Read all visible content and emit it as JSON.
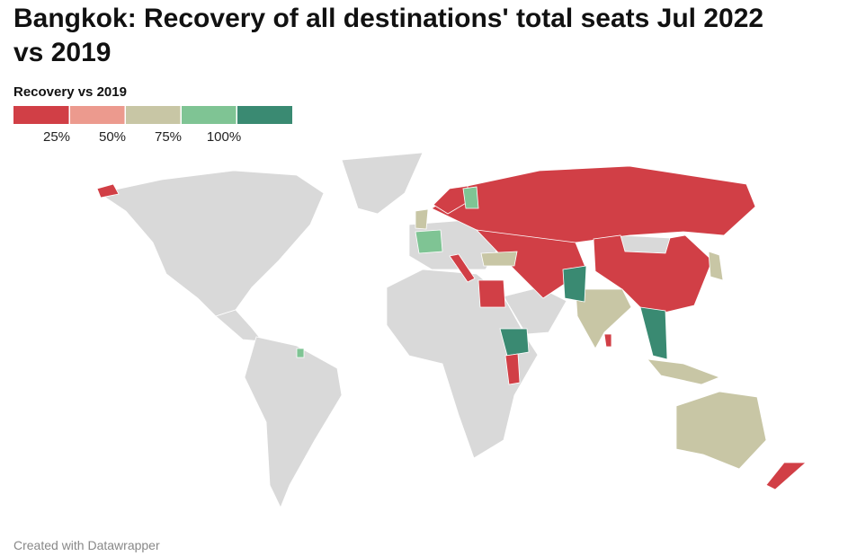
{
  "header": {
    "title_line1": "Bangkok: Recovery of all destinations' total seats Jul 2022",
    "title_line2": "vs 2019"
  },
  "legend": {
    "title": "Recovery vs 2019",
    "colors": [
      "#d13f46",
      "#ec9a8e",
      "#c8c6a5",
      "#7fc494",
      "#3a8a72"
    ],
    "ticks": [
      {
        "value": 25,
        "label": "25%"
      },
      {
        "value": 50,
        "label": "50%"
      },
      {
        "value": 75,
        "label": "75%"
      },
      {
        "value": 100,
        "label": "100%"
      }
    ]
  },
  "map": {
    "no_data_color": "#d9d9d9"
  },
  "footer": {
    "credit": "Created with Datawrapper"
  }
}
